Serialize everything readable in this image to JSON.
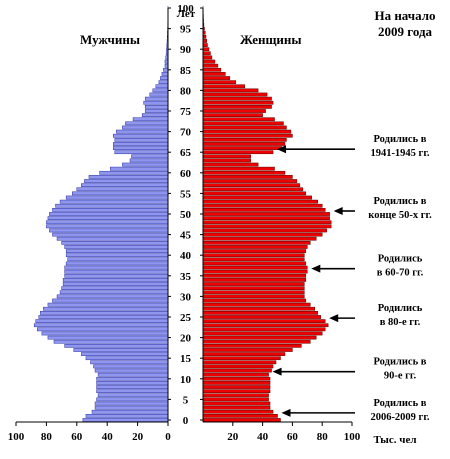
{
  "chart_data": {
    "type": "bar",
    "title_lines": [
      "На начало",
      "2009 года"
    ],
    "male_label": "Мужчины",
    "female_label": "Женщины",
    "age_unit": "Лет",
    "x_unit": "Тыс. чел",
    "xlim": [
      0,
      100
    ],
    "x_ticks": [
      100,
      80,
      60,
      40,
      20,
      0,
      20,
      40,
      60,
      80,
      100
    ],
    "age_ticks": [
      0,
      5,
      10,
      15,
      20,
      25,
      30,
      35,
      40,
      45,
      50,
      55,
      60,
      65,
      70,
      75,
      80,
      85,
      90,
      95,
      100
    ],
    "male_color": "#8e96f0",
    "female_color": "#ee0000",
    "ages": [
      0,
      1,
      2,
      3,
      4,
      5,
      6,
      7,
      8,
      9,
      10,
      11,
      12,
      13,
      14,
      15,
      16,
      17,
      18,
      19,
      20,
      21,
      22,
      23,
      24,
      25,
      26,
      27,
      28,
      29,
      30,
      31,
      32,
      33,
      34,
      35,
      36,
      37,
      38,
      39,
      40,
      41,
      42,
      43,
      44,
      45,
      46,
      47,
      48,
      49,
      50,
      51,
      52,
      53,
      54,
      55,
      56,
      57,
      58,
      59,
      60,
      61,
      62,
      63,
      64,
      65,
      66,
      67,
      68,
      69,
      70,
      71,
      72,
      73,
      74,
      75,
      76,
      77,
      78,
      79,
      80,
      81,
      82,
      83,
      84,
      85,
      86,
      87,
      88,
      89,
      90,
      91,
      92,
      93,
      94,
      95,
      96,
      97,
      98,
      99,
      100
    ],
    "series": [
      {
        "name": "Мужчины",
        "values": [
          56,
          54,
          50,
          48,
          48,
          47,
          46,
          47,
          47,
          47,
          47,
          46,
          48,
          49,
          51,
          54,
          57,
          62,
          68,
          75,
          79,
          83,
          86,
          88,
          87,
          85,
          84,
          82,
          79,
          76,
          73,
          71,
          70,
          69,
          69,
          68,
          68,
          68,
          67,
          66,
          67,
          67,
          68,
          70,
          73,
          76,
          78,
          80,
          80,
          79,
          78,
          76,
          74,
          71,
          67,
          63,
          60,
          57,
          55,
          52,
          45,
          38,
          30,
          25,
          24,
          35,
          36,
          36,
          35,
          36,
          34,
          30,
          28,
          23,
          17,
          15,
          15,
          16,
          15,
          12,
          10,
          8,
          6,
          5,
          4,
          3,
          2,
          2,
          1.5,
          1.2,
          1,
          0.8,
          0.6,
          0.5,
          0.4,
          0.3,
          0.2,
          0.1,
          0.1,
          0.1,
          0.1
        ]
      },
      {
        "name": "Женщины",
        "values": [
          52,
          50,
          47,
          45,
          45,
          44,
          44,
          45,
          45,
          45,
          45,
          44,
          46,
          47,
          49,
          52,
          55,
          60,
          66,
          72,
          76,
          80,
          82,
          84,
          82,
          79,
          77,
          75,
          72,
          69,
          68,
          68,
          68,
          68,
          69,
          69,
          70,
          70,
          69,
          68,
          68,
          69,
          70,
          72,
          76,
          80,
          83,
          86,
          86,
          85,
          85,
          82,
          80,
          77,
          73,
          69,
          67,
          65,
          63,
          60,
          55,
          48,
          37,
          32,
          32,
          47,
          53,
          55,
          56,
          60,
          59,
          56,
          54,
          48,
          40,
          42,
          46,
          47,
          46,
          43,
          37,
          28,
          22,
          18,
          15,
          12,
          10,
          8,
          6,
          5,
          4,
          3,
          2.5,
          2,
          1.5,
          1,
          0.6,
          0.4,
          0.3,
          0.2,
          0.1
        ]
      }
    ],
    "annotations": [
      {
        "lines": [
          "Родились в",
          "1941-1945 гг."
        ],
        "age": 65
      },
      {
        "lines": [
          "Родились в",
          "конце 50-х гг."
        ],
        "age": 50
      },
      {
        "lines": [
          "Родились",
          "в 60-70 гг."
        ],
        "age": 36
      },
      {
        "lines": [
          "Родились",
          "в 80-е гг."
        ],
        "age": 24
      },
      {
        "lines": [
          "Родились в",
          "90-е гг."
        ],
        "age": 11
      },
      {
        "lines": [
          "Родились в",
          "2006-2009 гг."
        ],
        "age": 1
      }
    ]
  }
}
